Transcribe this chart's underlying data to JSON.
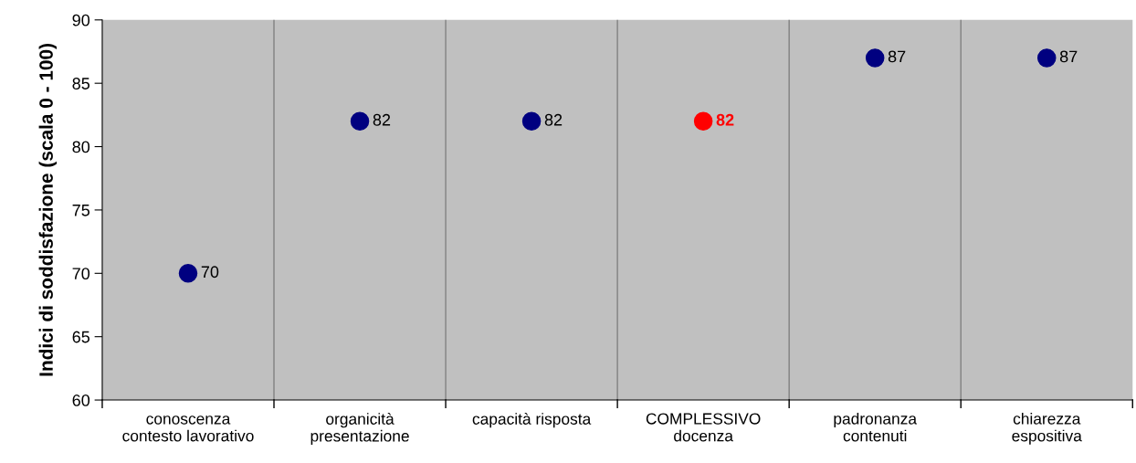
{
  "chart_data": {
    "type": "scatter",
    "ylabel": "Indici di soddisfazione (scala 0 - 100)",
    "categories": [
      "conoscenza\ncontesto lavorativo",
      "organicità\npresentazione",
      "capacità risposta",
      "COMPLESSIVO\ndocenza",
      "padronanza\ncontenuti",
      "chiarezza\nespositiva"
    ],
    "values": [
      70,
      82,
      82,
      82,
      87,
      87
    ],
    "colors": [
      "#000080",
      "#000080",
      "#000080",
      "#ff0000",
      "#000080",
      "#000080"
    ],
    "ylim": [
      60,
      90
    ],
    "yticks": [
      60,
      65,
      70,
      75,
      80,
      85,
      90
    ],
    "grid": "x",
    "marker": "circle",
    "data_labels": true,
    "legend": false
  }
}
